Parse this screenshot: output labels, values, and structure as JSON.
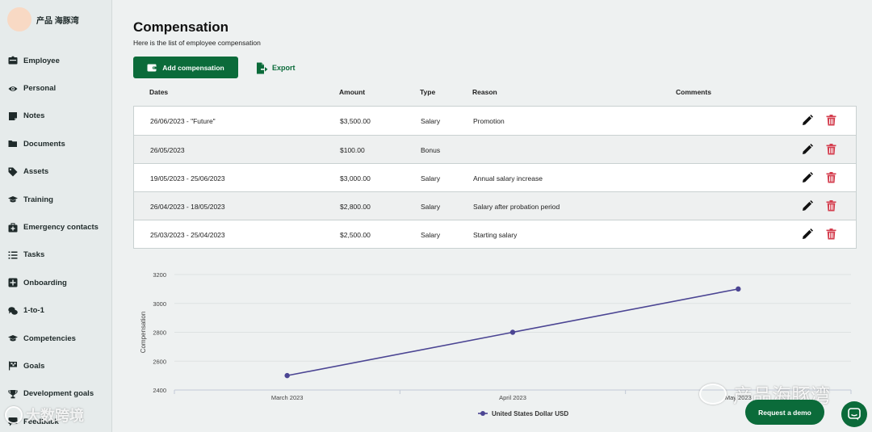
{
  "brand": {
    "name": "产品 海豚湾"
  },
  "sidebar": {
    "items": [
      {
        "label": "Employee",
        "icon": "id-card-icon"
      },
      {
        "label": "Personal",
        "icon": "eye-icon"
      },
      {
        "label": "Notes",
        "icon": "note-icon"
      },
      {
        "label": "Documents",
        "icon": "folder-icon"
      },
      {
        "label": "Assets",
        "icon": "tag-icon"
      },
      {
        "label": "Training",
        "icon": "graduation-cap-icon"
      },
      {
        "label": "Emergency contacts",
        "icon": "first-aid-icon"
      },
      {
        "label": "Tasks",
        "icon": "checklist-icon"
      },
      {
        "label": "Onboarding",
        "icon": "plus-square-icon"
      },
      {
        "label": "1-to-1",
        "icon": "chat-bubbles-icon"
      },
      {
        "label": "Competencies",
        "icon": "graduation-cap-icon"
      },
      {
        "label": "Goals",
        "icon": "flag-icon"
      },
      {
        "label": "Development goals",
        "icon": "trophy-icon"
      },
      {
        "label": "Feedback",
        "icon": "feedback-icon"
      }
    ]
  },
  "header": {
    "title": "Compensation",
    "subtitle": "Here is the list of employee compensation"
  },
  "toolbar": {
    "add_label": "Add compensation",
    "export_label": "Export"
  },
  "table": {
    "columns": [
      "Dates",
      "Amount",
      "Type",
      "Reason",
      "Comments"
    ],
    "rows": [
      {
        "dates": "26/06/2023 - \"Future\"",
        "amount": "$3,500.00",
        "type": "Salary",
        "reason": "Promotion",
        "comments": ""
      },
      {
        "dates": "26/05/2023",
        "amount": "$100.00",
        "type": "Bonus",
        "reason": "",
        "comments": ""
      },
      {
        "dates": "19/05/2023 - 25/06/2023",
        "amount": "$3,000.00",
        "type": "Salary",
        "reason": "Annual salary increase",
        "comments": ""
      },
      {
        "dates": "26/04/2023 - 18/05/2023",
        "amount": "$2,800.00",
        "type": "Salary",
        "reason": "Salary after probation period",
        "comments": ""
      },
      {
        "dates": "25/03/2023 - 25/04/2023",
        "amount": "$2,500.00",
        "type": "Salary",
        "reason": "Starting salary",
        "comments": ""
      }
    ]
  },
  "chart_data": {
    "type": "line",
    "ylabel": "Compensation",
    "xlabel": "",
    "categories": [
      "March 2023",
      "April 2023",
      "May 2023"
    ],
    "y_ticks": [
      2400,
      2600,
      2800,
      3000,
      3200
    ],
    "ylim": [
      2400,
      3200
    ],
    "series": [
      {
        "name": "United States Dollar USD",
        "values": [
          2500,
          2800,
          3100
        ],
        "color": "#4b4593"
      }
    ],
    "grid": true,
    "legend": "bottom-center"
  },
  "footer": {
    "demo_label": "Request a demo"
  },
  "watermarks": {
    "left": "大数跨境",
    "right": "产品海豚湾"
  },
  "colors": {
    "primary": "#0b6b3a",
    "danger": "#d43f4f",
    "series": "#4b4593"
  }
}
